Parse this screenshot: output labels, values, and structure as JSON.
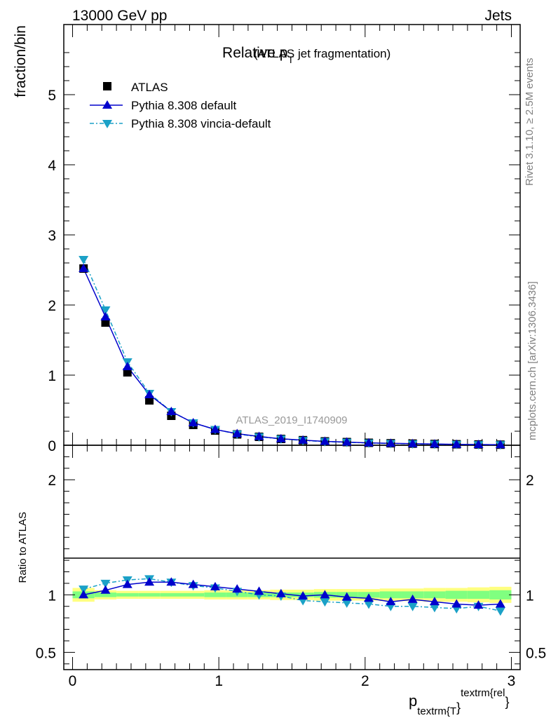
{
  "header": {
    "left": "13000 GeV pp",
    "right": "Jets"
  },
  "side": {
    "rivet": "Rivet 3.1.10, ≥ 2.5M events",
    "mcplots": "mcplots.cern.ch [arXiv:1306.3436]"
  },
  "title": {
    "main": "Relative p",
    "sub": "T",
    "suffix": " (ATLAS jet fragmentation)"
  },
  "watermark": "ATLAS_2019_I1740909",
  "xlabel": {
    "base": "p",
    "sub": "textrm{T",
    "close": "}",
    "sup": "textrm{rel",
    "close2": "}"
  },
  "colors": {
    "data": "#000000",
    "pythia_default": "#0000cc",
    "pythia_vincia": "#1ba1c7",
    "band_yellow": "#ffff80",
    "band_green": "#80ff80"
  },
  "chart_data": [
    {
      "type": "scatter",
      "ylabel": "fraction/bin",
      "xlim": [
        -0.06,
        3.06
      ],
      "ylim": [
        0,
        6
      ],
      "yticks": [
        0,
        1,
        2,
        3,
        4,
        5
      ],
      "legend": [
        {
          "name": "ATLAS",
          "marker": "square"
        },
        {
          "name": "Pythia 8.308 default",
          "marker": "triangle-up"
        },
        {
          "name": "Pythia 8.308 vincia-default",
          "marker": "triangle-down"
        }
      ],
      "x": [
        0.075,
        0.225,
        0.375,
        0.525,
        0.675,
        0.825,
        0.975,
        1.125,
        1.275,
        1.425,
        1.575,
        1.725,
        1.875,
        2.025,
        2.175,
        2.325,
        2.475,
        2.625,
        2.775,
        2.925
      ],
      "series": [
        {
          "name": "ATLAS",
          "values": [
            2.52,
            1.75,
            1.04,
            0.64,
            0.42,
            0.29,
            0.21,
            0.155,
            0.12,
            0.09,
            0.072,
            0.055,
            0.045,
            0.035,
            0.028,
            0.023,
            0.018,
            0.014,
            0.011,
            0.008
          ]
        },
        {
          "name": "Pythia 8.308 default",
          "values": [
            2.52,
            1.83,
            1.12,
            0.72,
            0.48,
            0.32,
            0.225,
            0.165,
            0.125,
            0.092,
            0.072,
            0.055,
            0.045,
            0.034,
            0.027,
            0.022,
            0.017,
            0.013,
            0.01,
            0.007
          ]
        },
        {
          "name": "Pythia 8.308 vincia-default",
          "values": [
            2.65,
            1.93,
            1.19,
            0.74,
            0.48,
            0.32,
            0.225,
            0.16,
            0.12,
            0.09,
            0.068,
            0.052,
            0.042,
            0.032,
            0.025,
            0.02,
            0.016,
            0.012,
            0.009,
            0.007
          ]
        }
      ]
    },
    {
      "type": "line",
      "ylabel": "Ratio to ATLAS",
      "xlim": [
        -0.06,
        3.06
      ],
      "ylim": [
        0.35,
        2.3
      ],
      "yticks": [
        0.5,
        1,
        2
      ],
      "xticks": [
        0,
        1,
        2,
        3
      ],
      "x": [
        0.075,
        0.225,
        0.375,
        0.525,
        0.675,
        0.825,
        0.975,
        1.125,
        1.275,
        1.425,
        1.575,
        1.725,
        1.875,
        2.025,
        2.175,
        2.325,
        2.475,
        2.625,
        2.775,
        2.925
      ],
      "band_total": [
        0.06,
        0.04,
        0.035,
        0.035,
        0.035,
        0.035,
        0.04,
        0.04,
        0.04,
        0.045,
        0.045,
        0.05,
        0.05,
        0.05,
        0.055,
        0.055,
        0.06,
        0.06,
        0.065,
        0.07
      ],
      "band_stat": [
        0.03,
        0.02,
        0.015,
        0.015,
        0.015,
        0.015,
        0.02,
        0.02,
        0.02,
        0.02,
        0.02,
        0.025,
        0.025,
        0.025,
        0.03,
        0.03,
        0.03,
        0.035,
        0.035,
        0.04
      ],
      "series": [
        {
          "name": "Pythia 8.308 default",
          "values": [
            1.0,
            1.04,
            1.09,
            1.11,
            1.11,
            1.09,
            1.07,
            1.05,
            1.03,
            1.01,
            0.99,
            1.0,
            0.98,
            0.97,
            0.94,
            0.96,
            0.94,
            0.92,
            0.91,
            0.92
          ]
        },
        {
          "name": "Pythia 8.308 vincia-default",
          "values": [
            1.05,
            1.1,
            1.13,
            1.14,
            1.11,
            1.08,
            1.06,
            1.03,
            1.0,
            0.99,
            0.95,
            0.94,
            0.93,
            0.92,
            0.9,
            0.9,
            0.89,
            0.88,
            0.9,
            0.86
          ]
        }
      ]
    }
  ]
}
